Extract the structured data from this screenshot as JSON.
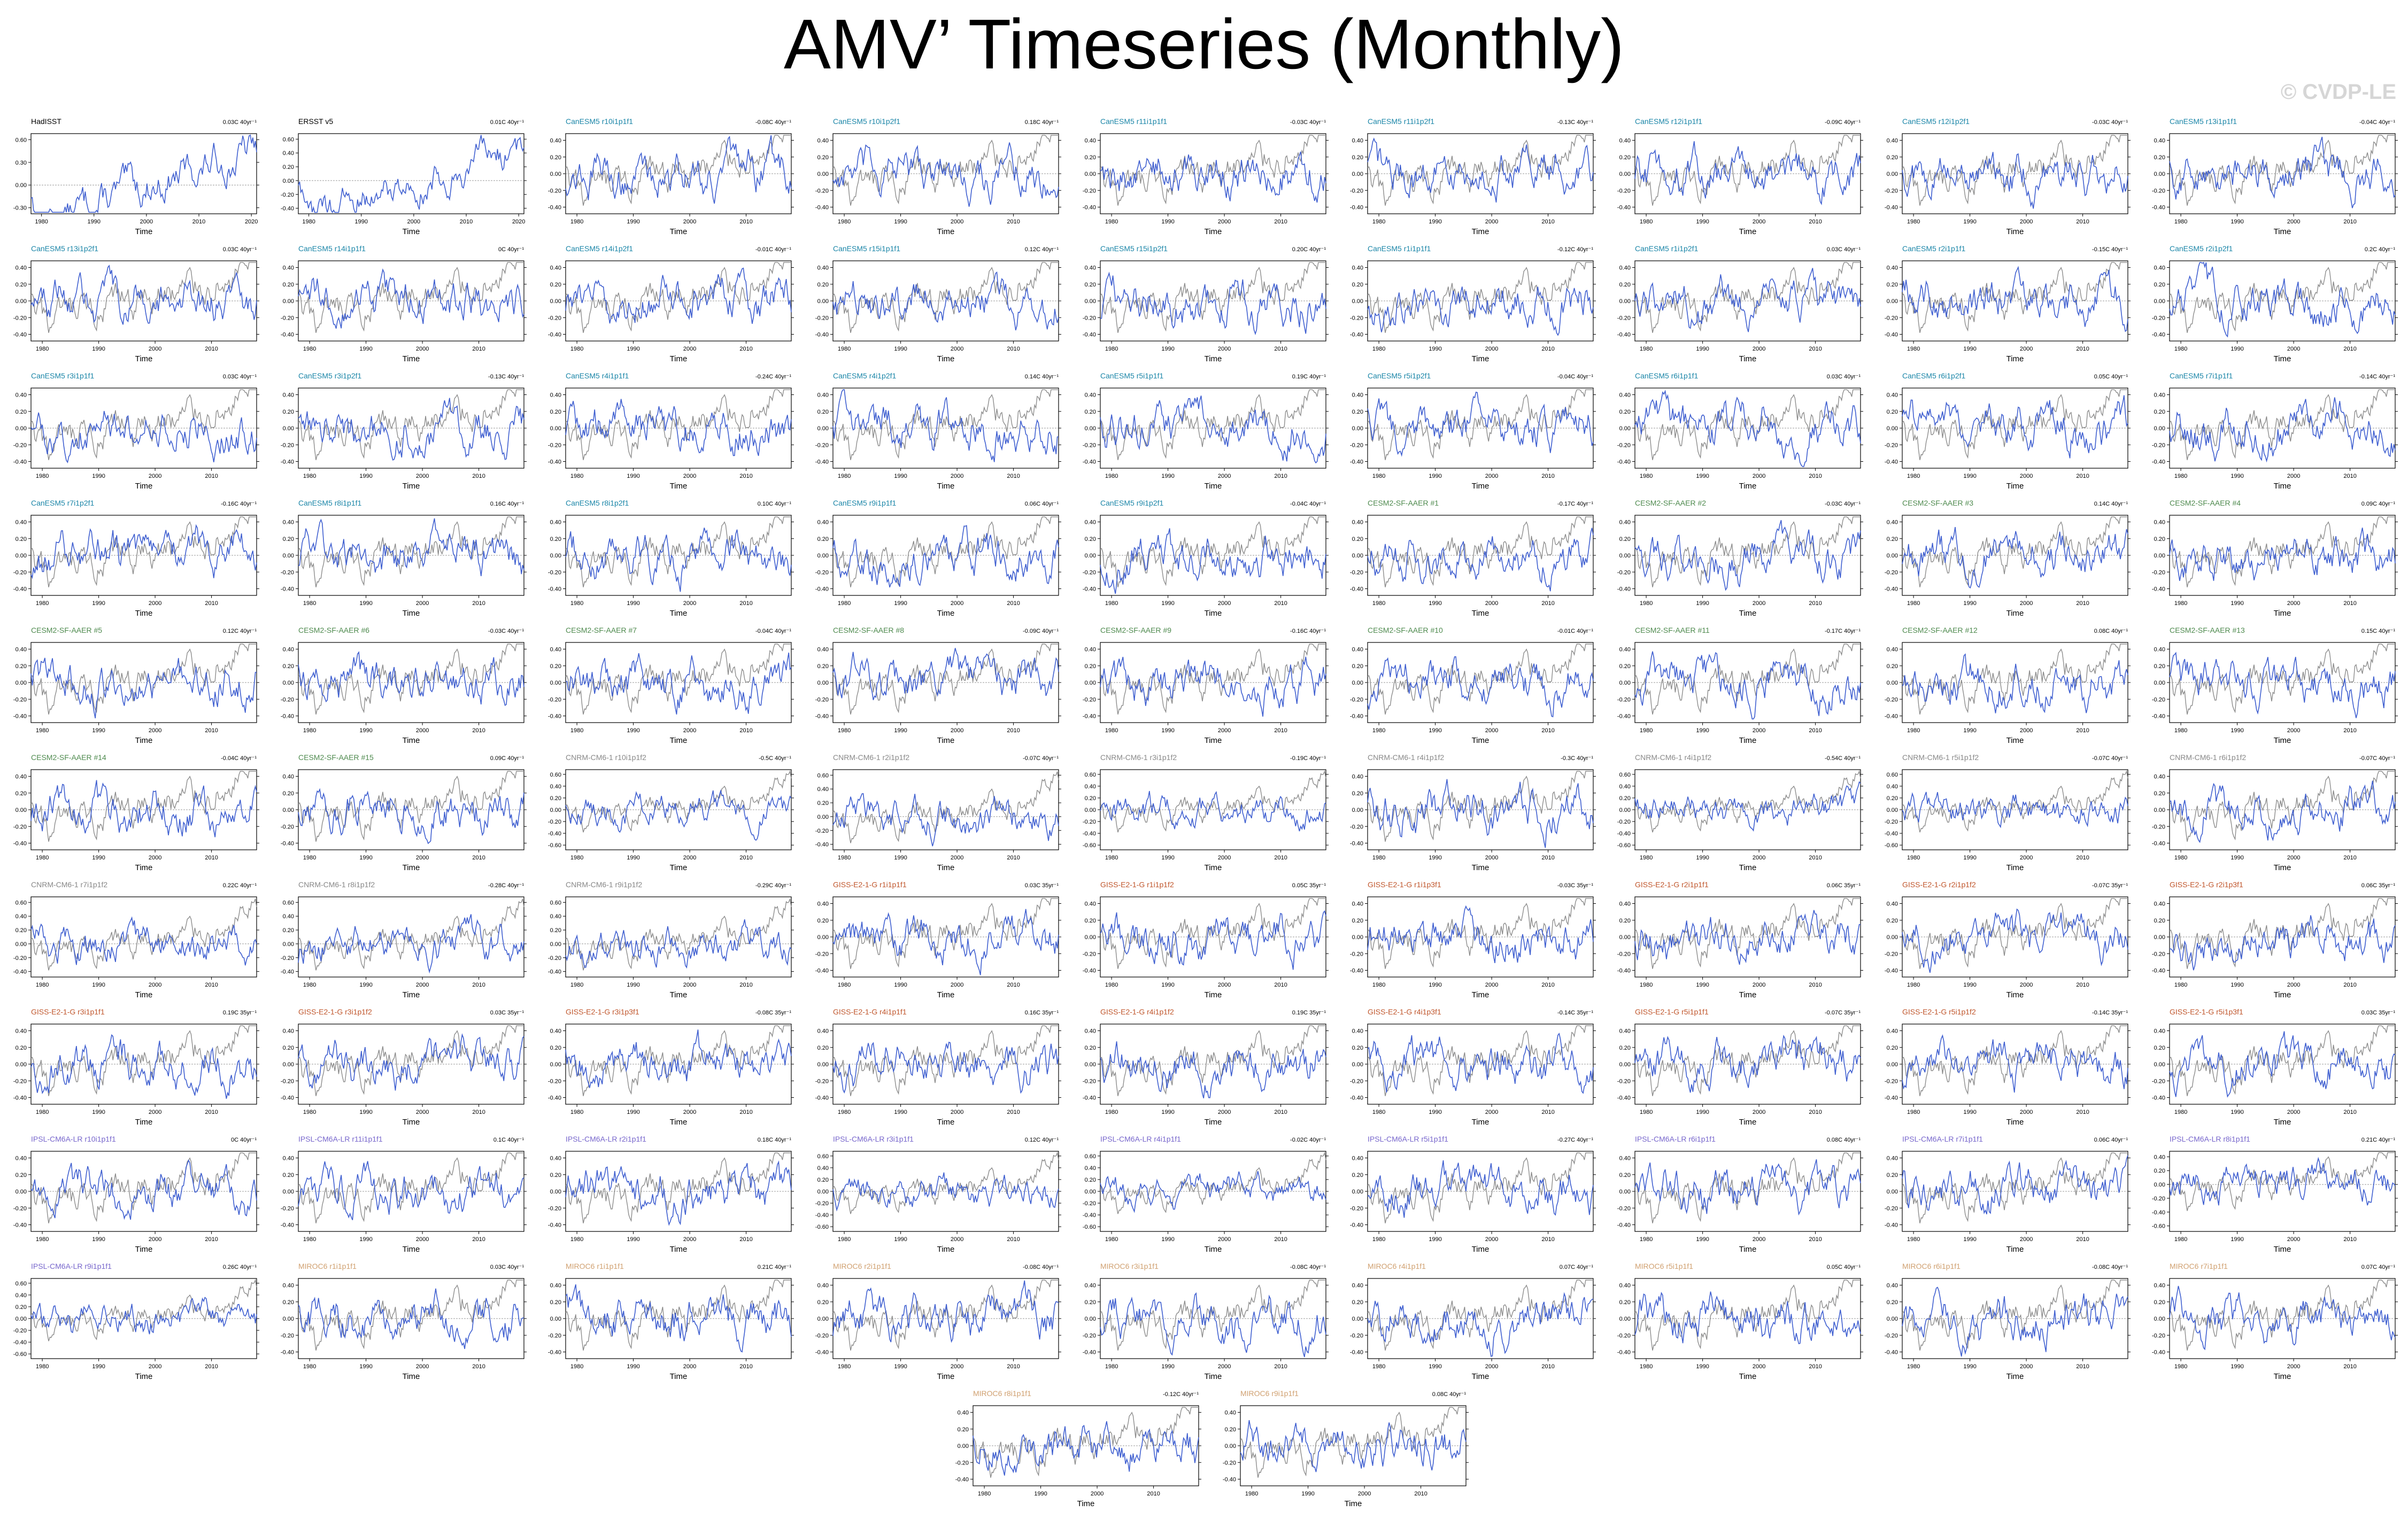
{
  "title": "AMV’ Timeseries (Monthly)",
  "watermark": "© CVDP-LE",
  "colors": {
    "observation": "#3f5fd0",
    "model": "#3f5fd0",
    "ensemble_reference": "#8c8c8c",
    "zero_line": "#999999",
    "label_obs": "#000000",
    "label_canesm": "#1b86a8",
    "label_cesm2": "#4e8a4e",
    "label_cnrm": "#888888",
    "label_giss": "#c0562c",
    "label_ipsl": "#7766cc",
    "label_miroc": "#d0a070"
  },
  "chart_data": {
    "type": "line",
    "xlabel": "Time",
    "x_ticks": [
      "1980",
      "1990",
      "2000",
      "2010"
    ],
    "y_ticks": [
      "0.40",
      "0.20",
      "0.00",
      "-0.20",
      "-0.40"
    ],
    "ylim": [
      -0.5,
      0.5
    ],
    "series_note": "",
    "panels": [
      {
        "label": "HadISST",
        "trend": "0.03C 40yr⁻¹",
        "group": "obs",
        "xticks": [
          "1980",
          "1990",
          "2000",
          "2010",
          "2020"
        ],
        "yticks": [
          "0.60",
          "0.30",
          "0.00",
          "-0.30"
        ],
        "single": true
      },
      {
        "label": "ERSST v5",
        "trend": "0.01C 40yr⁻¹",
        "group": "obs",
        "xticks": [
          "1980",
          "1990",
          "2000",
          "2010",
          "2020"
        ],
        "yticks": [
          "0.60",
          "0.40",
          "0.20",
          "0.00",
          "-0.20",
          "-0.40"
        ],
        "single": true
      },
      {
        "label": "CanESM5 r10i1p1f1",
        "trend": "-0.08C 40yr⁻¹",
        "group": "canesm"
      },
      {
        "label": "CanESM5 r10i1p2f1",
        "trend": "0.18C 40yr⁻¹",
        "group": "canesm"
      },
      {
        "label": "CanESM5 r11i1p1f1",
        "trend": "-0.03C 40yr⁻¹",
        "group": "canesm"
      },
      {
        "label": "CanESM5 r11i1p2f1",
        "trend": "-0.13C 40yr⁻¹",
        "group": "canesm"
      },
      {
        "label": "CanESM5 r12i1p1f1",
        "trend": "-0.09C 40yr⁻¹",
        "group": "canesm"
      },
      {
        "label": "CanESM5 r12i1p2f1",
        "trend": "-0.03C 40yr⁻¹",
        "group": "canesm"
      },
      {
        "label": "CanESM5 r13i1p1f1",
        "trend": "-0.04C 40yr⁻¹",
        "group": "canesm"
      },
      {
        "label": "CanESM5 r13i1p2f1",
        "trend": "0.03C 40yr⁻¹",
        "group": "canesm"
      },
      {
        "label": "CanESM5 r14i1p1f1",
        "trend": "0C 40yr⁻¹",
        "group": "canesm"
      },
      {
        "label": "CanESM5 r14i1p2f1",
        "trend": "-0.01C 40yr⁻¹",
        "group": "canesm"
      },
      {
        "label": "CanESM5 r15i1p1f1",
        "trend": "0.12C 40yr⁻¹",
        "group": "canesm"
      },
      {
        "label": "CanESM5 r15i1p2f1",
        "trend": "0.20C 40yr⁻¹",
        "group": "canesm"
      },
      {
        "label": "CanESM5 r1i1p1f1",
        "trend": "-0.12C 40yr⁻¹",
        "group": "canesm"
      },
      {
        "label": "CanESM5 r1i1p2f1",
        "trend": "0.03C 40yr⁻¹",
        "group": "canesm"
      },
      {
        "label": "CanESM5 r2i1p1f1",
        "trend": "-0.15C 40yr⁻¹",
        "group": "canesm"
      },
      {
        "label": "CanESM5 r2i1p2f1",
        "trend": "0.2C 40yr⁻¹",
        "group": "canesm"
      },
      {
        "label": "CanESM5 r3i1p1f1",
        "trend": "0.03C 40yr⁻¹",
        "group": "canesm"
      },
      {
        "label": "CanESM5 r3i1p2f1",
        "trend": "-0.13C 40yr⁻¹",
        "group": "canesm"
      },
      {
        "label": "CanESM5 r4i1p1f1",
        "trend": "-0.24C 40yr⁻¹",
        "group": "canesm"
      },
      {
        "label": "CanESM5 r4i1p2f1",
        "trend": "0.14C 40yr⁻¹",
        "group": "canesm"
      },
      {
        "label": "CanESM5 r5i1p1f1",
        "trend": "0.19C 40yr⁻¹",
        "group": "canesm"
      },
      {
        "label": "CanESM5 r5i1p2f1",
        "trend": "-0.04C 40yr⁻¹",
        "group": "canesm"
      },
      {
        "label": "CanESM5 r6i1p1f1",
        "trend": "0.03C 40yr⁻¹",
        "group": "canesm"
      },
      {
        "label": "CanESM5 r6i1p2f1",
        "trend": "0.05C 40yr⁻¹",
        "group": "canesm"
      },
      {
        "label": "CanESM5 r7i1p1f1",
        "trend": "-0.14C 40yr⁻¹",
        "group": "canesm"
      },
      {
        "label": "CanESM5 r7i1p2f1",
        "trend": "-0.16C 40yr⁻¹",
        "group": "canesm"
      },
      {
        "label": "CanESM5 r8i1p1f1",
        "trend": "0.16C 40yr⁻¹",
        "group": "canesm"
      },
      {
        "label": "CanESM5 r8i1p2f1",
        "trend": "0.10C 40yr⁻¹",
        "group": "canesm"
      },
      {
        "label": "CanESM5 r9i1p1f1",
        "trend": "0.06C 40yr⁻¹",
        "group": "canesm"
      },
      {
        "label": "CanESM5 r9i1p2f1",
        "trend": "-0.04C 40yr⁻¹",
        "group": "canesm"
      },
      {
        "label": "CESM2-SF-AAER #1",
        "trend": "-0.17C 40yr⁻¹",
        "group": "cesm2"
      },
      {
        "label": "CESM2-SF-AAER #2",
        "trend": "-0.03C 40yr⁻¹",
        "group": "cesm2"
      },
      {
        "label": "CESM2-SF-AAER #3",
        "trend": "0.14C 40yr⁻¹",
        "group": "cesm2"
      },
      {
        "label": "CESM2-SF-AAER #4",
        "trend": "0.09C 40yr⁻¹",
        "group": "cesm2"
      },
      {
        "label": "CESM2-SF-AAER #5",
        "trend": "0.12C 40yr⁻¹",
        "group": "cesm2"
      },
      {
        "label": "CESM2-SF-AAER #6",
        "trend": "-0.03C 40yr⁻¹",
        "group": "cesm2"
      },
      {
        "label": "CESM2-SF-AAER #7",
        "trend": "-0.04C 40yr⁻¹",
        "group": "cesm2"
      },
      {
        "label": "CESM2-SF-AAER #8",
        "trend": "-0.09C 40yr⁻¹",
        "group": "cesm2"
      },
      {
        "label": "CESM2-SF-AAER #9",
        "trend": "-0.16C 40yr⁻¹",
        "group": "cesm2"
      },
      {
        "label": "CESM2-SF-AAER #10",
        "trend": "-0.01C 40yr⁻¹",
        "group": "cesm2"
      },
      {
        "label": "CESM2-SF-AAER #11",
        "trend": "-0.17C 40yr⁻¹",
        "group": "cesm2"
      },
      {
        "label": "CESM2-SF-AAER #12",
        "trend": "0.08C 40yr⁻¹",
        "group": "cesm2"
      },
      {
        "label": "CESM2-SF-AAER #13",
        "trend": "0.15C 40yr⁻¹",
        "group": "cesm2"
      },
      {
        "label": "CESM2-SF-AAER #14",
        "trend": "-0.04C 40yr⁻¹",
        "group": "cesm2"
      },
      {
        "label": "CESM2-SF-AAER #15",
        "trend": "0.09C 40yr⁻¹",
        "group": "cesm2"
      },
      {
        "label": "CNRM-CM6-1 r10i1p1f2",
        "trend": "-0.5C 40yr⁻¹",
        "group": "cnrm",
        "yticks": [
          "0.60",
          "0.40",
          "0.20",
          "0.00",
          "-0.20",
          "-0.40",
          "-0.60"
        ]
      },
      {
        "label": "CNRM-CM6-1 r2i1p1f2",
        "trend": "-0.07C 40yr⁻¹",
        "group": "cnrm",
        "yticks": [
          "0.60",
          "0.40",
          "0.20",
          "0.00",
          "-0.20",
          "-0.40"
        ]
      },
      {
        "label": "CNRM-CM6-1 r3i1p1f2",
        "trend": "-0.19C 40yr⁻¹",
        "group": "cnrm",
        "yticks": [
          "0.60",
          "0.40",
          "0.20",
          "0.00",
          "-0.20",
          "-0.40",
          "-0.60"
        ]
      },
      {
        "label": "CNRM-CM6-1 r4i1p1f2",
        "trend": "-0.3C 40yr⁻¹",
        "group": "cnrm"
      },
      {
        "label": "CNRM-CM6-1 r4i1p1f2",
        "trend": "-0.54C 40yr⁻¹",
        "group": "cnrm",
        "yticks": [
          "0.60",
          "0.40",
          "0.20",
          "0.00",
          "-0.20",
          "-0.40",
          "-0.60"
        ]
      },
      {
        "label": "CNRM-CM6-1 r5i1p1f2",
        "trend": "-0.07C 40yr⁻¹",
        "group": "cnrm",
        "yticks": [
          "0.60",
          "0.40",
          "0.20",
          "0.00",
          "-0.20",
          "-0.40",
          "-0.60"
        ]
      },
      {
        "label": "CNRM-CM6-1 r6i1p1f2",
        "trend": "-0.07C 40yr⁻¹",
        "group": "cnrm"
      },
      {
        "label": "CNRM-CM6-1 r7i1p1f2",
        "trend": "0.22C 40yr⁻¹",
        "group": "cnrm",
        "yticks": [
          "0.60",
          "0.40",
          "0.20",
          "0.00",
          "-0.20",
          "-0.40"
        ]
      },
      {
        "label": "CNRM-CM6-1 r8i1p1f2",
        "trend": "-0.28C 40yr⁻¹",
        "group": "cnrm",
        "yticks": [
          "0.60",
          "0.40",
          "0.20",
          "0.00",
          "-0.20",
          "-0.40"
        ]
      },
      {
        "label": "CNRM-CM6-1 r9i1p1f2",
        "trend": "-0.29C 40yr⁻¹",
        "group": "cnrm",
        "yticks": [
          "0.60",
          "0.40",
          "0.20",
          "0.00",
          "-0.20",
          "-0.40"
        ]
      },
      {
        "label": "GISS-E2-1-G r1i1p1f1",
        "trend": "0.03C 35yr⁻¹",
        "group": "giss"
      },
      {
        "label": "GISS-E2-1-G r1i1p1f2",
        "trend": "0.05C 35yr⁻¹",
        "group": "giss"
      },
      {
        "label": "GISS-E2-1-G r1i1p3f1",
        "trend": "-0.03C 35yr⁻¹",
        "group": "giss"
      },
      {
        "label": "GISS-E2-1-G r2i1p1f1",
        "trend": "0.06C 35yr⁻¹",
        "group": "giss"
      },
      {
        "label": "GISS-E2-1-G r2i1p1f2",
        "trend": "-0.07C 35yr⁻¹",
        "group": "giss"
      },
      {
        "label": "GISS-E2-1-G r2i1p3f1",
        "trend": "0.06C 35yr⁻¹",
        "group": "giss"
      },
      {
        "label": "GISS-E2-1-G r3i1p1f1",
        "trend": "0.19C 35yr⁻¹",
        "group": "giss"
      },
      {
        "label": "GISS-E2-1-G r3i1p1f2",
        "trend": "0.03C 35yr⁻¹",
        "group": "giss"
      },
      {
        "label": "GISS-E2-1-G r3i1p3f1",
        "trend": "-0.08C 35yr⁻¹",
        "group": "giss"
      },
      {
        "label": "GISS-E2-1-G r4i1p1f1",
        "trend": "0.16C 35yr⁻¹",
        "group": "giss"
      },
      {
        "label": "GISS-E2-1-G r4i1p1f2",
        "trend": "0.19C 35yr⁻¹",
        "group": "giss"
      },
      {
        "label": "GISS-E2-1-G r4i1p3f1",
        "trend": "-0.14C 35yr⁻¹",
        "group": "giss"
      },
      {
        "label": "GISS-E2-1-G r5i1p1f1",
        "trend": "-0.07C 35yr⁻¹",
        "group": "giss"
      },
      {
        "label": "GISS-E2-1-G r5i1p1f2",
        "trend": "-0.14C 35yr⁻¹",
        "group": "giss"
      },
      {
        "label": "GISS-E2-1-G r5i1p3f1",
        "trend": "0.03C 35yr⁻¹",
        "group": "giss"
      },
      {
        "label": "IPSL-CM6A-LR r10i1p1f1",
        "trend": "0C 40yr⁻¹",
        "group": "ipsl"
      },
      {
        "label": "IPSL-CM6A-LR r11i1p1f1",
        "trend": "0.1C 40yr⁻¹",
        "group": "ipsl"
      },
      {
        "label": "IPSL-CM6A-LR r2i1p1f1",
        "trend": "0.18C 40yr⁻¹",
        "group": "ipsl"
      },
      {
        "label": "IPSL-CM6A-LR r3i1p1f1",
        "trend": "0.12C 40yr⁻¹",
        "group": "ipsl",
        "yticks": [
          "0.60",
          "0.40",
          "0.20",
          "0.00",
          "-0.20",
          "-0.40",
          "-0.60"
        ]
      },
      {
        "label": "IPSL-CM6A-LR r4i1p1f1",
        "trend": "-0.02C 40yr⁻¹",
        "group": "ipsl",
        "yticks": [
          "0.60",
          "0.40",
          "0.20",
          "0.00",
          "-0.20",
          "-0.40",
          "-0.60"
        ]
      },
      {
        "label": "IPSL-CM6A-LR r5i1p1f1",
        "trend": "-0.27C 40yr⁻¹",
        "group": "ipsl"
      },
      {
        "label": "IPSL-CM6A-LR r6i1p1f1",
        "trend": "0.08C 40yr⁻¹",
        "group": "ipsl"
      },
      {
        "label": "IPSL-CM6A-LR r7i1p1f1",
        "trend": "0.06C 40yr⁻¹",
        "group": "ipsl"
      },
      {
        "label": "IPSL-CM6A-LR r8i1p1f1",
        "trend": "0.21C 40yr⁻¹",
        "group": "ipsl",
        "yticks": [
          "0.40",
          "0.20",
          "0.00",
          "-0.20",
          "-0.40",
          "-0.60"
        ]
      },
      {
        "label": "IPSL-CM6A-LR r9i1p1f1",
        "trend": "0.26C 40yr⁻¹",
        "group": "ipsl",
        "yticks": [
          "0.60",
          "0.40",
          "0.20",
          "0.00",
          "-0.20",
          "-0.40",
          "-0.60"
        ]
      },
      {
        "label": "MIROC6 r1i1p1f1",
        "trend": "0.03C 40yr⁻¹",
        "group": "miroc"
      },
      {
        "label": "MIROC6 r1i1p1f1",
        "trend": "0.21C 40yr⁻¹",
        "group": "miroc"
      },
      {
        "label": "MIROC6 r2i1p1f1",
        "trend": "-0.08C 40yr⁻¹",
        "group": "miroc"
      },
      {
        "label": "MIROC6 r3i1p1f1",
        "trend": "-0.08C 40yr⁻¹",
        "group": "miroc"
      },
      {
        "label": "MIROC6 r4i1p1f1",
        "trend": "0.07C 40yr⁻¹",
        "group": "miroc"
      },
      {
        "label": "MIROC6 r5i1p1f1",
        "trend": "0.05C 40yr⁻¹",
        "group": "miroc"
      },
      {
        "label": "MIROC6 r6i1p1f1",
        "trend": "-0.08C 40yr⁻¹",
        "group": "miroc"
      },
      {
        "label": "MIROC6 r7i1p1f1",
        "trend": "0.07C 40yr⁻¹",
        "group": "miroc"
      },
      {
        "label": "MIROC6 r8i1p1f1",
        "trend": "-0.12C 40yr⁻¹",
        "group": "miroc"
      },
      {
        "label": "MIROC6 r9i1p1f1",
        "trend": "0.08C 40yr⁻¹",
        "group": "miroc"
      }
    ]
  }
}
